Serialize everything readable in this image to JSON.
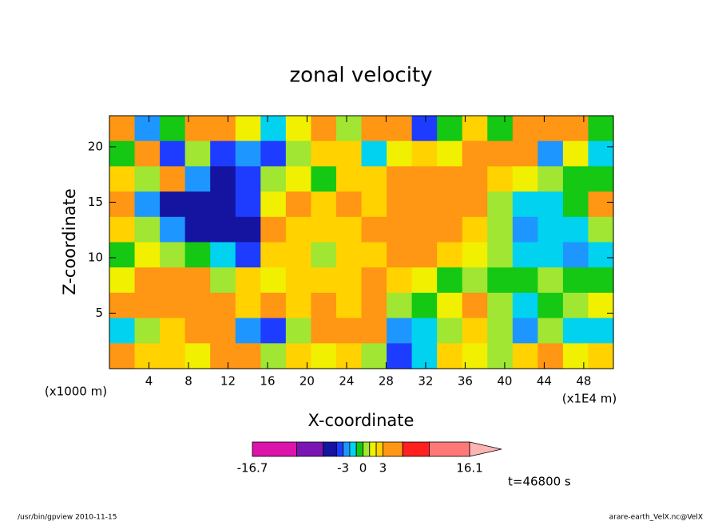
{
  "chart_data": {
    "type": "heatmap",
    "title": "zonal velocity",
    "xlabel": "X-coordinate",
    "ylabel": "Z-coordinate",
    "xunit": "(x1E4 m)",
    "yunit": "(x1000 m)",
    "xlim": [
      0,
      51
    ],
    "ylim": [
      0,
      22.8
    ],
    "xticks": [
      4,
      8,
      12,
      16,
      20,
      24,
      28,
      32,
      36,
      40,
      44,
      48
    ],
    "yticks": [
      5,
      10,
      15,
      20
    ],
    "values": [
      [
        4,
        -3,
        -0.5,
        5,
        5,
        1.5,
        -1.5,
        1.5,
        4,
        0,
        4,
        5,
        -4,
        -0.5,
        2,
        -0.5,
        4,
        5,
        4,
        -0.5
      ],
      [
        -1,
        4,
        -4,
        0,
        -4,
        -3,
        -4,
        0,
        2,
        2,
        -1.5,
        1.5,
        2,
        1.5,
        5,
        4,
        5,
        -3,
        1.5,
        -1.5
      ],
      [
        2,
        0,
        4,
        -3,
        -5,
        -4,
        0,
        1.5,
        -0.5,
        2,
        2,
        4,
        5,
        4,
        4,
        2,
        1.5,
        0,
        -0.5,
        -0.5
      ],
      [
        5,
        -3,
        -5,
        -5,
        -5,
        -4,
        1.5,
        5,
        2,
        4,
        2.5,
        5,
        5,
        4,
        5,
        0,
        -1.5,
        -1.5,
        -0.5,
        4
      ],
      [
        2,
        0,
        -3,
        -5,
        -5,
        -6,
        4,
        2,
        2,
        2,
        4,
        5,
        5,
        5,
        2,
        0,
        -3,
        -1.5,
        -2,
        0
      ],
      [
        -0.5,
        1.5,
        0,
        -0.5,
        -2,
        -4,
        2,
        2,
        0,
        2,
        2.5,
        4,
        4,
        2,
        1.5,
        0,
        -1.5,
        -2,
        -3,
        -2
      ],
      [
        1.5,
        4,
        5,
        4,
        0,
        2,
        1.5,
        2,
        2,
        2.5,
        4,
        2,
        1.5,
        -0.5,
        0,
        -0.5,
        -0.5,
        0,
        -0.5,
        -0.5
      ],
      [
        4,
        5,
        5,
        5,
        4,
        2,
        4,
        2,
        4,
        2,
        4,
        0,
        -0.5,
        1.5,
        4,
        0,
        -1.5,
        -0.5,
        0,
        1.5
      ],
      [
        -2,
        0,
        2,
        4,
        4,
        -3,
        -4,
        0,
        4,
        4,
        5,
        -3,
        -1.5,
        0,
        2,
        0,
        -3,
        0,
        -1.5,
        -1.5
      ],
      [
        4,
        2,
        2,
        1.5,
        4,
        4,
        0,
        2,
        1.5,
        2,
        0,
        -4,
        -2,
        2,
        1.5,
        0,
        2,
        4,
        1.5,
        2
      ]
    ],
    "colorbar": {
      "levels": [
        -16.7,
        -10,
        -6,
        -4,
        -3,
        -2,
        -1,
        0,
        1,
        2,
        3,
        6,
        10,
        16.1
      ],
      "colors": [
        "#dc14aa",
        "#7a14b4",
        "#1414a0",
        "#1e3cff",
        "#1e96ff",
        "#00d2f0",
        "#14c814",
        "#a0e632",
        "#f0f000",
        "#ffd200",
        "#ff9614",
        "#ff2020",
        "#ff7878"
      ],
      "over_color": "#ffb4b4",
      "ticks": [
        -16.7,
        -3,
        0,
        3,
        16.1
      ]
    },
    "annotation": "t=46800 s",
    "footer_left": "/usr/bin/gpview  2010-11-15",
    "footer_right": "arare-earth_VelX.nc@VelX"
  }
}
